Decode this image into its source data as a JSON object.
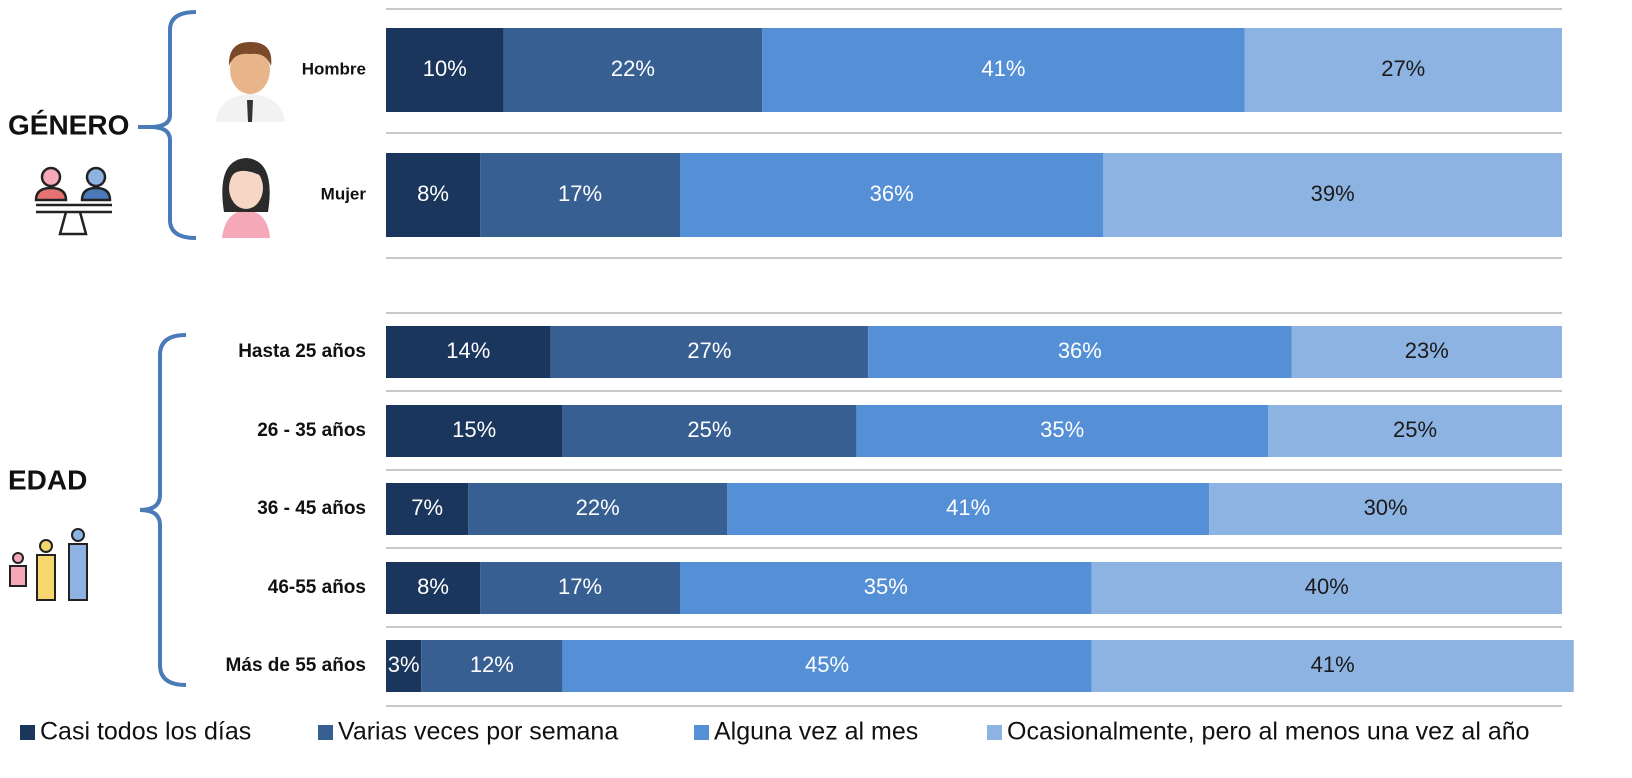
{
  "chart_data": {
    "type": "bar",
    "orientation": "horizontal",
    "stacked": true,
    "xlim": [
      0,
      100
    ],
    "group_titles": [
      "GÉNERO",
      "EDAD"
    ],
    "categories": [
      [
        "Hombre",
        "Mujer"
      ],
      [
        "Hasta 25 años",
        "26 - 35 años",
        "36 - 45 años",
        "46-55 años",
        "Más de 55 años"
      ]
    ],
    "series": [
      {
        "name": "Casi todos los días",
        "color": "#1b365d",
        "label_color": "#ffffff",
        "values": [
          [
            10,
            8
          ],
          [
            14,
            15,
            7,
            8,
            3
          ]
        ],
        "value_labels": [
          [
            "10%",
            "8%"
          ],
          [
            "14%",
            "15%",
            "7%",
            "8%",
            "3%"
          ]
        ]
      },
      {
        "name": "Varias veces por semana",
        "color": "#375f92",
        "label_color": "#ffffff",
        "values": [
          [
            22,
            17
          ],
          [
            27,
            25,
            22,
            17,
            12
          ]
        ],
        "value_labels": [
          [
            "22%",
            "17%"
          ],
          [
            "27%",
            "25%",
            "22%",
            "17%",
            "12%"
          ]
        ]
      },
      {
        "name": "Alguna vez al mes",
        "color": "#558fd6",
        "label_color": "#ffffff",
        "values": [
          [
            41,
            36
          ],
          [
            36,
            35,
            41,
            35,
            45
          ]
        ],
        "value_labels": [
          [
            "41%",
            "36%"
          ],
          [
            "36%",
            "35%",
            "41%",
            "35%",
            "45%"
          ]
        ]
      },
      {
        "name": "Ocasionalmente, pero al menos una vez al año",
        "color": "#8db3e2",
        "label_color": "#1a1a1a",
        "values": [
          [
            27,
            39
          ],
          [
            23,
            25,
            30,
            40,
            41
          ]
        ],
        "value_labels": [
          [
            "27%",
            "39%"
          ],
          [
            "23%",
            "25%",
            "30%",
            "40%",
            "41%"
          ]
        ]
      }
    ]
  }
}
